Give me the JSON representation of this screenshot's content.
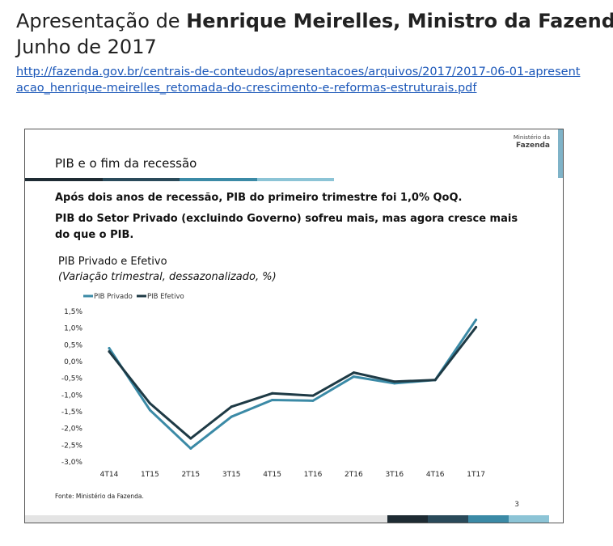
{
  "header": {
    "title_prefix": "Apresentação de ",
    "title_bold": "Henrique Meirelles, Ministro da Fazenda",
    "date": "Junho de 2017",
    "link": "http://fazenda.gov.br/centrais-de-conteudos/apresentacoes/arquivos/2017/2017-06-01-apresentacao_henrique-meirelles_retomada-do-crescimento-e-reformas-estruturais.pdf"
  },
  "slide": {
    "logo_line1": "Ministério da",
    "logo_line2": "Fazenda",
    "title": "PIB e o fim da recessão",
    "subtitle1": "Após dois anos de recessão, PIB do primeiro trimestre foi 1,0% QoQ.",
    "subtitle2": "PIB do Setor Privado (excluindo Governo) sofreu mais, mas agora cresce mais do que o PIB.",
    "source": "Fonte: Ministério da Fazenda.",
    "page_number": "3",
    "title_bar_colors": [
      "#1e2b33",
      "#2a4a5a",
      "#3b8aa6",
      "#8cc4d6"
    ],
    "bottom_bar_colors": [
      "#1e2b33",
      "#2a4a5a",
      "#3b8aa6",
      "#8cc4d6"
    ]
  },
  "chart_data": {
    "type": "line",
    "title": "PIB Privado e Efetivo",
    "subtitle": "(Variação trimestral, dessazonalizado, %)",
    "categories": [
      "4T14",
      "1T15",
      "2T15",
      "3T15",
      "4T15",
      "1T16",
      "2T16",
      "3T16",
      "4T16",
      "1T17"
    ],
    "y_ticks": [
      "1,5%",
      "1,0%",
      "0,5%",
      "0,0%",
      "-0,5%",
      "-1,0%",
      "-1,5%",
      "-2,0%",
      "-2,5%",
      "-3,0%"
    ],
    "ylim": [
      -3.0,
      1.5
    ],
    "series": [
      {
        "name": "PIB Privado",
        "color": "#3b8aa6",
        "values": [
          0.4,
          -1.45,
          -2.6,
          -1.65,
          -1.15,
          -1.17,
          -0.45,
          -0.65,
          -0.55,
          1.25
        ]
      },
      {
        "name": "PIB Efetivo",
        "color": "#1e3a45",
        "values": [
          0.3,
          -1.25,
          -2.3,
          -1.35,
          -0.95,
          -1.02,
          -0.33,
          -0.6,
          -0.55,
          1.03
        ]
      }
    ],
    "legend_position": "top-left",
    "grid": false
  }
}
